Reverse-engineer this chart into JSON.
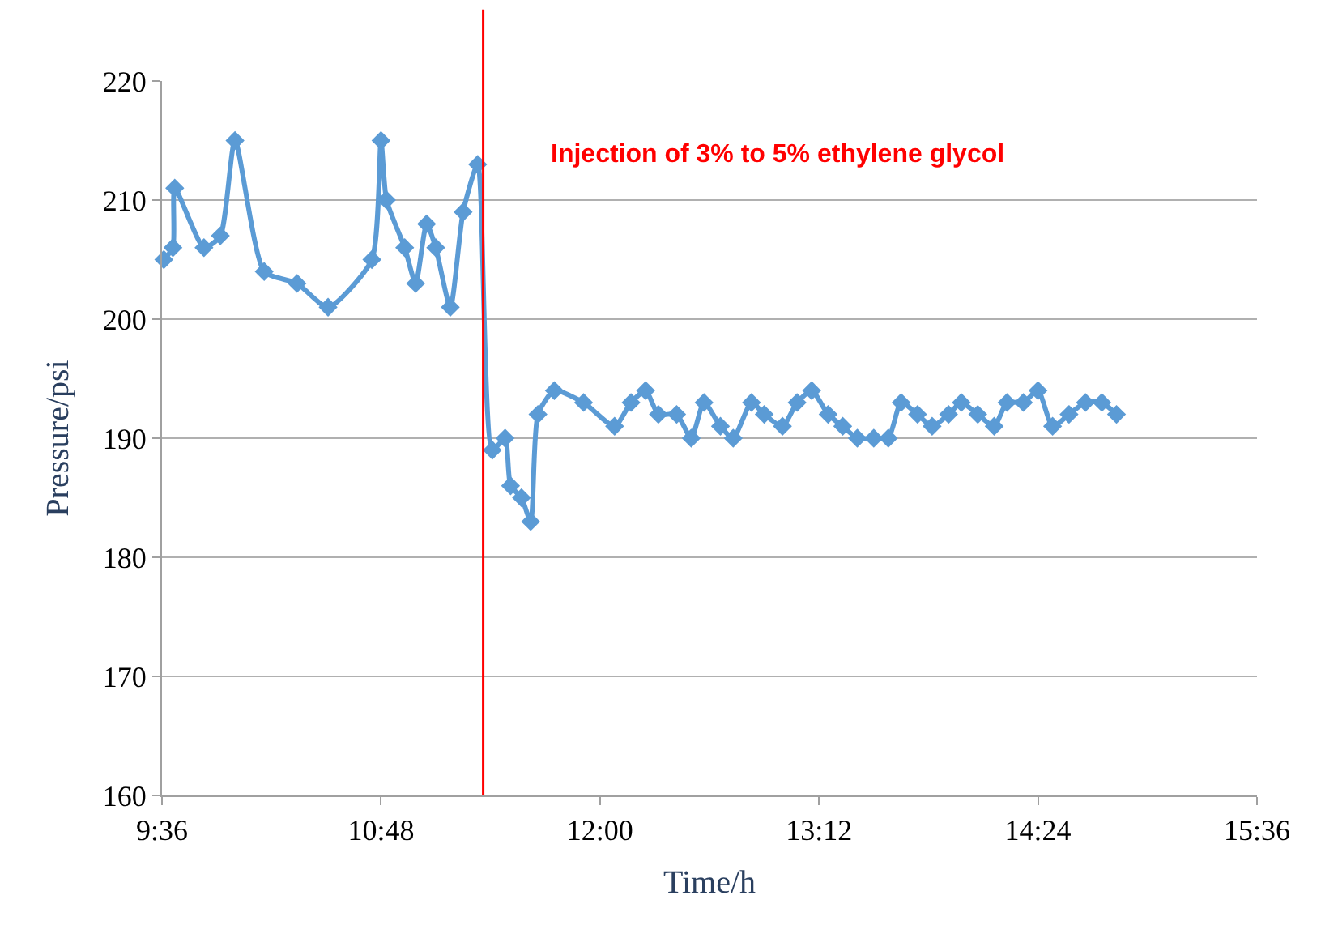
{
  "chart_data": {
    "type": "line",
    "xlabel": "Time/h",
    "ylabel": "Pressure/psi",
    "x": [
      9.61,
      9.66,
      9.67,
      9.83,
      9.92,
      10.0,
      10.16,
      10.34,
      10.51,
      10.75,
      10.8,
      10.83,
      10.93,
      10.99,
      11.05,
      11.1,
      11.18,
      11.25,
      11.33,
      11.41,
      11.48,
      11.51,
      11.57,
      11.62,
      11.66,
      11.75,
      11.91,
      12.08,
      12.17,
      12.25,
      12.32,
      12.42,
      12.5,
      12.57,
      12.66,
      12.73,
      12.83,
      12.9,
      13.0,
      13.08,
      13.16,
      13.25,
      13.33,
      13.41,
      13.5,
      13.58,
      13.65,
      13.74,
      13.82,
      13.91,
      13.98,
      14.07,
      14.16,
      14.23,
      14.32,
      14.4,
      14.48,
      14.57,
      14.66,
      14.75,
      14.83
    ],
    "series": [
      {
        "color": "#5b9bd5",
        "values": [
          205,
          206,
          211,
          206,
          207,
          215,
          204,
          203,
          201,
          205,
          215,
          210,
          206,
          203,
          208,
          206,
          201,
          209,
          213,
          189,
          190,
          186,
          185,
          183,
          192,
          194,
          193,
          191,
          193,
          194,
          192,
          192,
          190,
          193,
          191,
          190,
          193,
          192,
          191,
          193,
          194,
          192,
          191,
          190,
          190,
          190,
          193,
          192,
          191,
          192,
          193,
          192,
          191,
          193,
          193,
          194,
          191,
          192,
          193,
          193,
          192
        ]
      }
    ],
    "xlim": [
      9.6,
      15.6
    ],
    "xticks": [
      {
        "value": 9.6,
        "label": "9:36"
      },
      {
        "value": 10.8,
        "label": "10:48"
      },
      {
        "value": 12.0,
        "label": "12:00"
      },
      {
        "value": 13.2,
        "label": "13:12"
      },
      {
        "value": 14.4,
        "label": "14:24"
      },
      {
        "value": 15.6,
        "label": "15:36"
      }
    ],
    "ylim": [
      160,
      220
    ],
    "yticks": [
      160,
      170,
      180,
      190,
      200,
      210,
      220
    ],
    "ref_lines": [
      {
        "axis": "x",
        "value": 11.36,
        "label": "Injection of 3% to 5% ethylene glycol",
        "color": "#ff0000"
      }
    ],
    "grid": "y",
    "legend": false,
    "marker": "diamond",
    "line_style": "solid"
  }
}
